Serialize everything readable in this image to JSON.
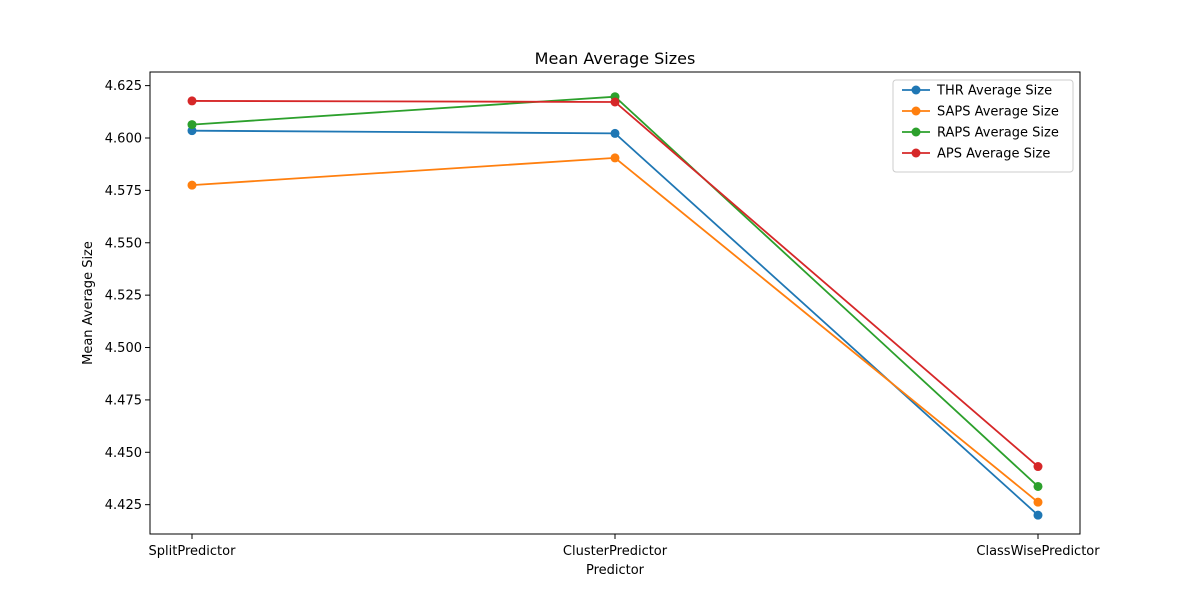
{
  "chart_data": {
    "type": "line",
    "title": "Mean Average Sizes",
    "xlabel": "Predictor",
    "ylabel": "Mean Average Size",
    "categories": [
      "SplitPredictor",
      "ClusterPredictor",
      "ClassWisePredictor"
    ],
    "ylim": [
      4.411,
      4.6315
    ],
    "yticks": [
      4.425,
      4.45,
      4.475,
      4.5,
      4.525,
      4.55,
      4.575,
      4.6,
      4.625
    ],
    "ytick_labels": [
      "4.425",
      "4.450",
      "4.475",
      "4.500",
      "4.525",
      "4.550",
      "4.575",
      "4.600",
      "4.625"
    ],
    "grid": false,
    "legend_position": "top-right",
    "series": [
      {
        "name": "THR Average Size",
        "color": "#1f77b4",
        "values": [
          4.6035,
          4.6022,
          4.42
        ]
      },
      {
        "name": "SAPS Average Size",
        "color": "#ff7f0e",
        "values": [
          4.5775,
          4.5905,
          4.4262
        ]
      },
      {
        "name": "RAPS Average Size",
        "color": "#2ca02c",
        "values": [
          4.6064,
          4.6197,
          4.4337
        ]
      },
      {
        "name": "APS Average Size",
        "color": "#d62728",
        "values": [
          4.6177,
          4.6172,
          4.4432
        ]
      }
    ]
  }
}
